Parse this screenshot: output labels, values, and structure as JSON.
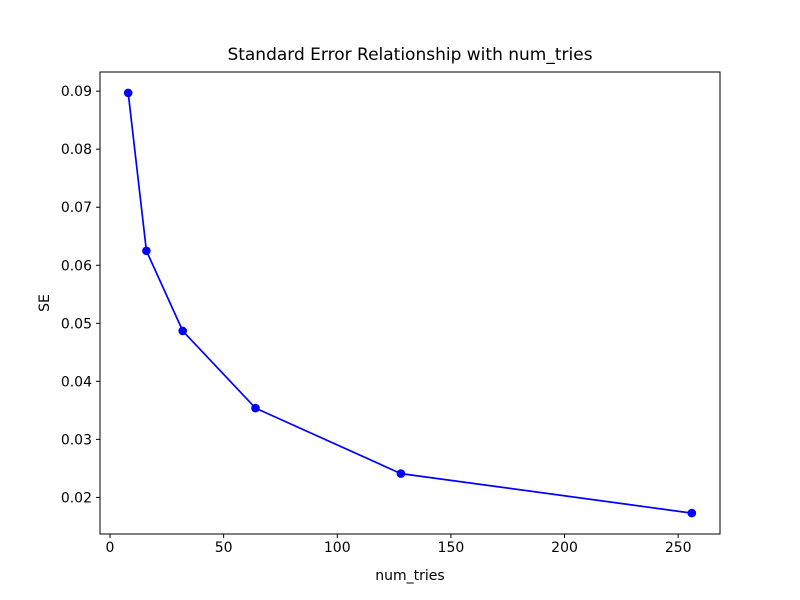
{
  "chart_data": {
    "type": "line",
    "title": "Standard Error Relationship with num_tries",
    "xlabel": "num_tries",
    "ylabel": "SE",
    "x": [
      8,
      16,
      32,
      64,
      128,
      256
    ],
    "series": [
      {
        "name": "SE",
        "values": [
          0.0897,
          0.0625,
          0.0487,
          0.0354,
          0.0241,
          0.0173
        ]
      }
    ],
    "xticks": [
      0,
      50,
      100,
      150,
      200,
      250
    ],
    "yticks": [
      0.02,
      0.03,
      0.04,
      0.05,
      0.06,
      0.07,
      0.08,
      0.09
    ],
    "xlim": [
      -4.4,
      268.4
    ],
    "ylim": [
      0.0137,
      0.0933
    ],
    "line_color": "#0000ff",
    "marker": "circle",
    "grid": false,
    "legend_position": "none",
    "axis_color": "#000000",
    "background_color": "#ffffff"
  }
}
